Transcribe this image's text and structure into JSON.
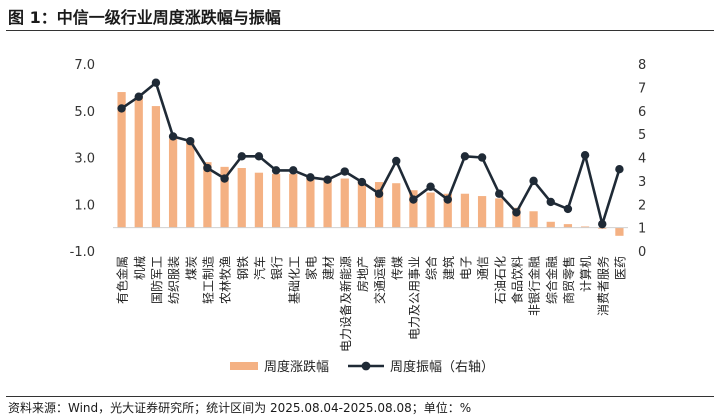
{
  "title": "图 1：中信一级行业周度涨跌幅与振幅",
  "source": "资料来源：Wind，光大证券研究所；统计区间为 2025.08.04-2025.08.08；单位：%",
  "chart_data": {
    "type": "bar",
    "categories": [
      "有色金属",
      "机械",
      "国防军工",
      "纺织服装",
      "煤炭",
      "轻工制造",
      "农林牧渔",
      "钢铁",
      "汽车",
      "银行",
      "基础化工",
      "家电",
      "建材",
      "电力设备及新能源",
      "房地产",
      "交通运输",
      "传媒",
      "电力及公用事业",
      "综合",
      "建筑",
      "电子",
      "通信",
      "石油石化",
      "食品饮料",
      "非银行金融",
      "综合金融",
      "商贸零售",
      "计算机",
      "消费者服务",
      "医药"
    ],
    "series": [
      {
        "name": "周度涨跌幅",
        "type": "bar",
        "axis": "left",
        "color": "#F4B183",
        "values": [
          5.8,
          5.6,
          5.2,
          3.8,
          3.7,
          2.8,
          2.6,
          2.55,
          2.35,
          2.3,
          2.3,
          2.2,
          2.15,
          2.1,
          2.0,
          1.95,
          1.9,
          1.6,
          1.5,
          1.45,
          1.45,
          1.35,
          1.25,
          0.85,
          0.7,
          0.25,
          0.15,
          0.05,
          -0.05,
          -0.35
        ]
      },
      {
        "name": "周度振幅（右轴）",
        "type": "line",
        "axis": "right",
        "color": "#1F2A36",
        "values": [
          6.1,
          6.6,
          7.2,
          4.9,
          4.7,
          3.55,
          3.1,
          4.05,
          4.05,
          3.45,
          3.45,
          3.15,
          3.05,
          3.4,
          2.95,
          2.45,
          3.85,
          2.2,
          2.75,
          2.2,
          4.05,
          4.0,
          2.45,
          1.65,
          3.0,
          2.1,
          1.8,
          4.1,
          1.15,
          3.5
        ]
      }
    ],
    "y_left": {
      "min": -1.0,
      "max": 7.0,
      "ticks": [
        "7.0",
        "5.0",
        "3.0",
        "1.0",
        "-1.0"
      ],
      "tick_values": [
        7,
        5,
        3,
        1,
        -1
      ]
    },
    "y_right": {
      "min": 0,
      "max": 8,
      "ticks": [
        "8",
        "7",
        "6",
        "5",
        "4",
        "3",
        "2",
        "1",
        "0"
      ],
      "tick_values": [
        8,
        7,
        6,
        5,
        4,
        3,
        2,
        1,
        0
      ]
    },
    "legend": {
      "placement": "bottom",
      "items": [
        {
          "label": "周度涨跌幅",
          "kind": "bar",
          "color": "#F4B183"
        },
        {
          "label": "周度振幅（右轴）",
          "kind": "line",
          "color": "#1F2A36"
        }
      ]
    }
  }
}
